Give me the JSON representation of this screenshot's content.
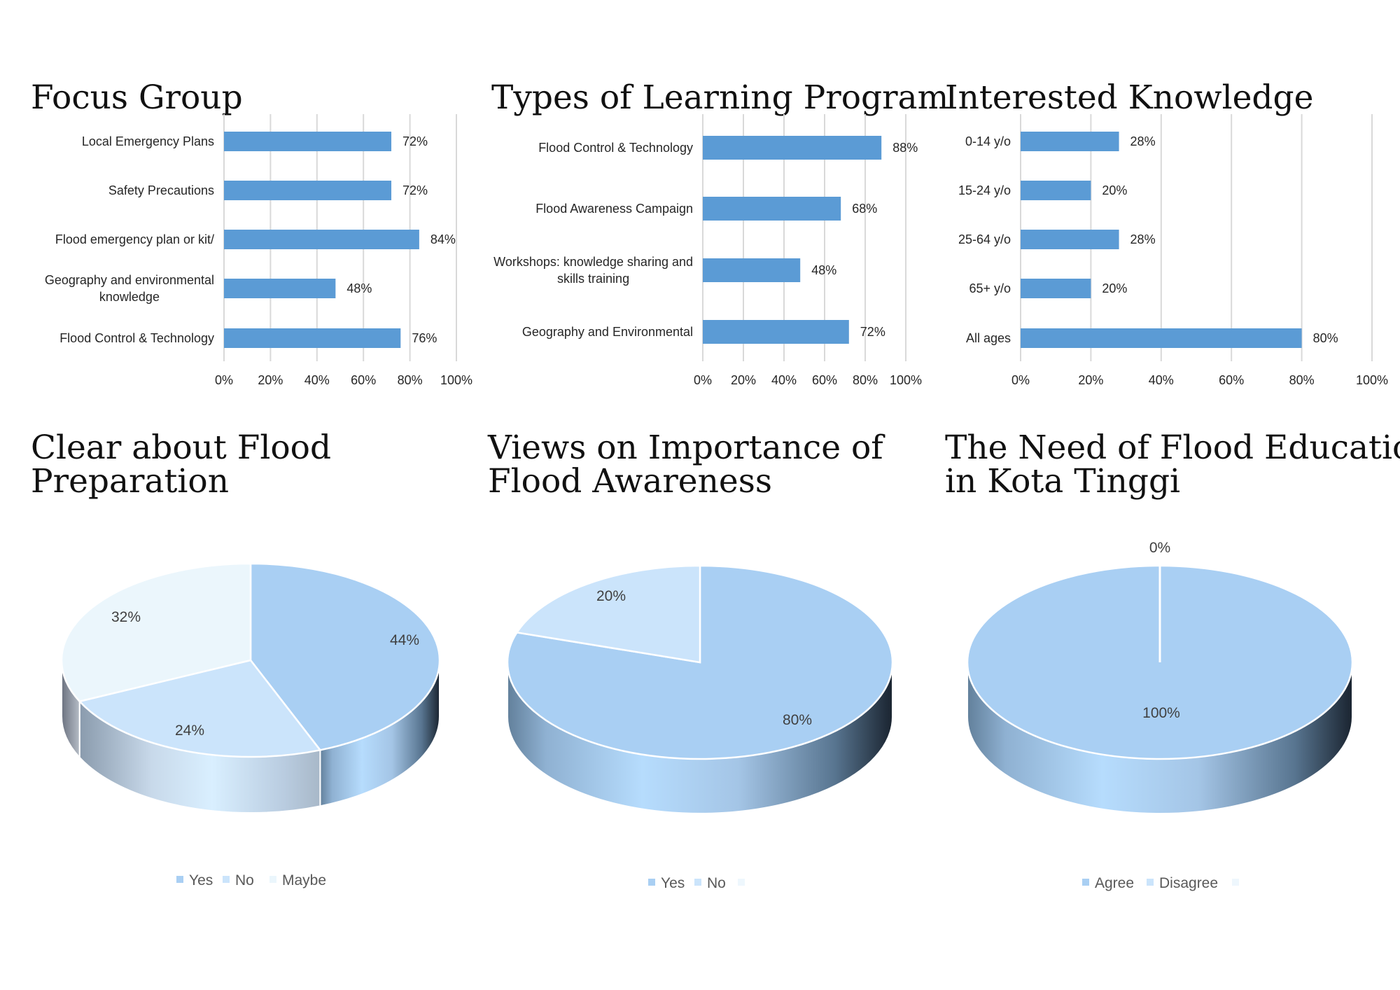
{
  "chart_data": [
    {
      "type": "bar",
      "orientation": "horizontal",
      "title": "Focus Group",
      "categories": [
        "Local Emergency Plans",
        "Safety Precautions",
        "Flood emergency plan or kit/",
        "Geography and environmental knowledge",
        "Flood Control & Technology"
      ],
      "values": [
        72,
        72,
        84,
        48,
        76
      ],
      "data_labels": [
        "72%",
        "72%",
        "84%",
        "48%",
        "76%"
      ],
      "xlim": [
        0,
        100
      ],
      "xticks": [
        "0%",
        "20%",
        "40%",
        "60%",
        "80%",
        "100%"
      ],
      "grid": true,
      "color": "#5b9bd5"
    },
    {
      "type": "bar",
      "orientation": "horizontal",
      "title": "Types of Learning Program",
      "categories": [
        "Flood Control & Technology",
        "Flood Awareness Campaign",
        "Workshops: knowledge sharing and skills training",
        "Geography and Environmental"
      ],
      "values": [
        88,
        68,
        48,
        72
      ],
      "data_labels": [
        "88%",
        "68%",
        "48%",
        "72%"
      ],
      "xlim": [
        0,
        100
      ],
      "xticks": [
        "0%",
        "20%",
        "40%",
        "60%",
        "80%",
        "100%"
      ],
      "grid": true,
      "color": "#5b9bd5"
    },
    {
      "type": "bar",
      "orientation": "horizontal",
      "title": "Interested Knowledge",
      "categories": [
        "0-14 y/o",
        "15-24 y/o",
        "25-64 y/o",
        "65+ y/o",
        "All ages"
      ],
      "values": [
        28,
        20,
        28,
        20,
        80
      ],
      "data_labels": [
        "28%",
        "20%",
        "28%",
        "20%",
        "80%"
      ],
      "xlim": [
        0,
        100
      ],
      "xticks": [
        "0%",
        "20%",
        "40%",
        "60%",
        "80%",
        "100%"
      ],
      "grid": true,
      "color": "#5b9bd5"
    },
    {
      "type": "pie",
      "style": "3d",
      "title": "Clear about Flood Preparation",
      "labels": [
        "Yes",
        "No",
        "Maybe"
      ],
      "values": [
        44,
        24,
        32
      ],
      "data_labels": [
        "44%",
        "24%",
        "32%"
      ],
      "colors": [
        "#a9cff3",
        "#cbe4fb",
        "#ebf6fc"
      ],
      "legend": "bottom"
    },
    {
      "type": "pie",
      "style": "3d",
      "title": "Views on Importance of Flood Awareness",
      "labels": [
        "Yes",
        "No"
      ],
      "values": [
        80,
        20
      ],
      "data_labels": [
        "80%",
        "20%"
      ],
      "colors": [
        "#a9cff3",
        "#cbe4fb"
      ],
      "legend": "bottom"
    },
    {
      "type": "pie",
      "style": "3d",
      "title": "The Need of Flood Education in Kota Tinggi",
      "labels": [
        "Agree",
        "Disagree"
      ],
      "values": [
        100,
        0
      ],
      "data_labels": [
        "100%",
        "0%"
      ],
      "colors": [
        "#a9cff3",
        "#cbe4fb"
      ],
      "legend": "bottom"
    }
  ]
}
